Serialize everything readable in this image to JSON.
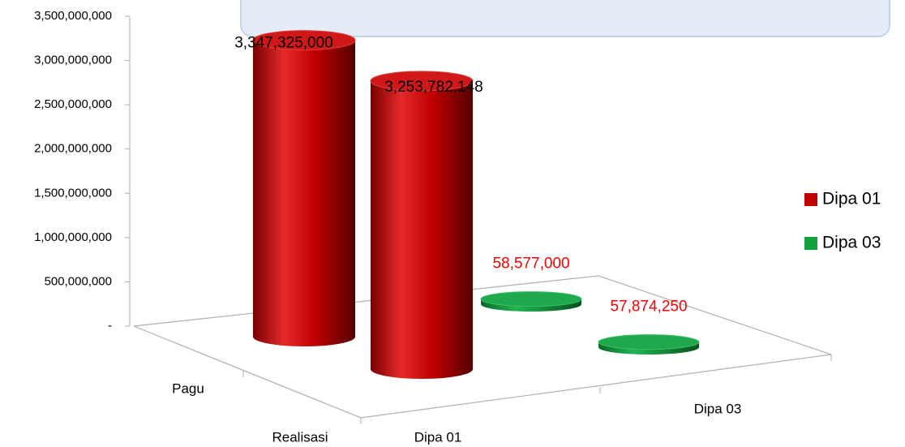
{
  "chart_data": {
    "type": "cylinder3d",
    "categories": [
      "Pagu",
      "Realisasi"
    ],
    "series": [
      {
        "name": "Dipa 01",
        "color": "#c00000",
        "label_color": "#000000",
        "values": [
          3347325000,
          3253782148
        ],
        "value_labels": [
          "3,347,325,000",
          "3,253,782,148"
        ]
      },
      {
        "name": "Dipa 03",
        "color": "#14a03c",
        "label_color": "#ff0000",
        "values": [
          58577000,
          57874250
        ],
        "value_labels": [
          "58,577,000",
          "57,874,250"
        ]
      }
    ],
    "ylim": [
      0,
      3500000000
    ],
    "yticks": [
      {
        "value": 0,
        "label": "-"
      },
      {
        "value": 500000000,
        "label": "500,000,000"
      },
      {
        "value": 1000000000,
        "label": "1,000,000,000"
      },
      {
        "value": 1500000000,
        "label": "1,500,000,000"
      },
      {
        "value": 2000000000,
        "label": "2,000,000,000"
      },
      {
        "value": 2500000000,
        "label": "2,500,000,000"
      },
      {
        "value": 3000000000,
        "label": "3,000,000,000"
      },
      {
        "value": 3500000000,
        "label": "3,500,000,000"
      }
    ],
    "legend": "right"
  }
}
